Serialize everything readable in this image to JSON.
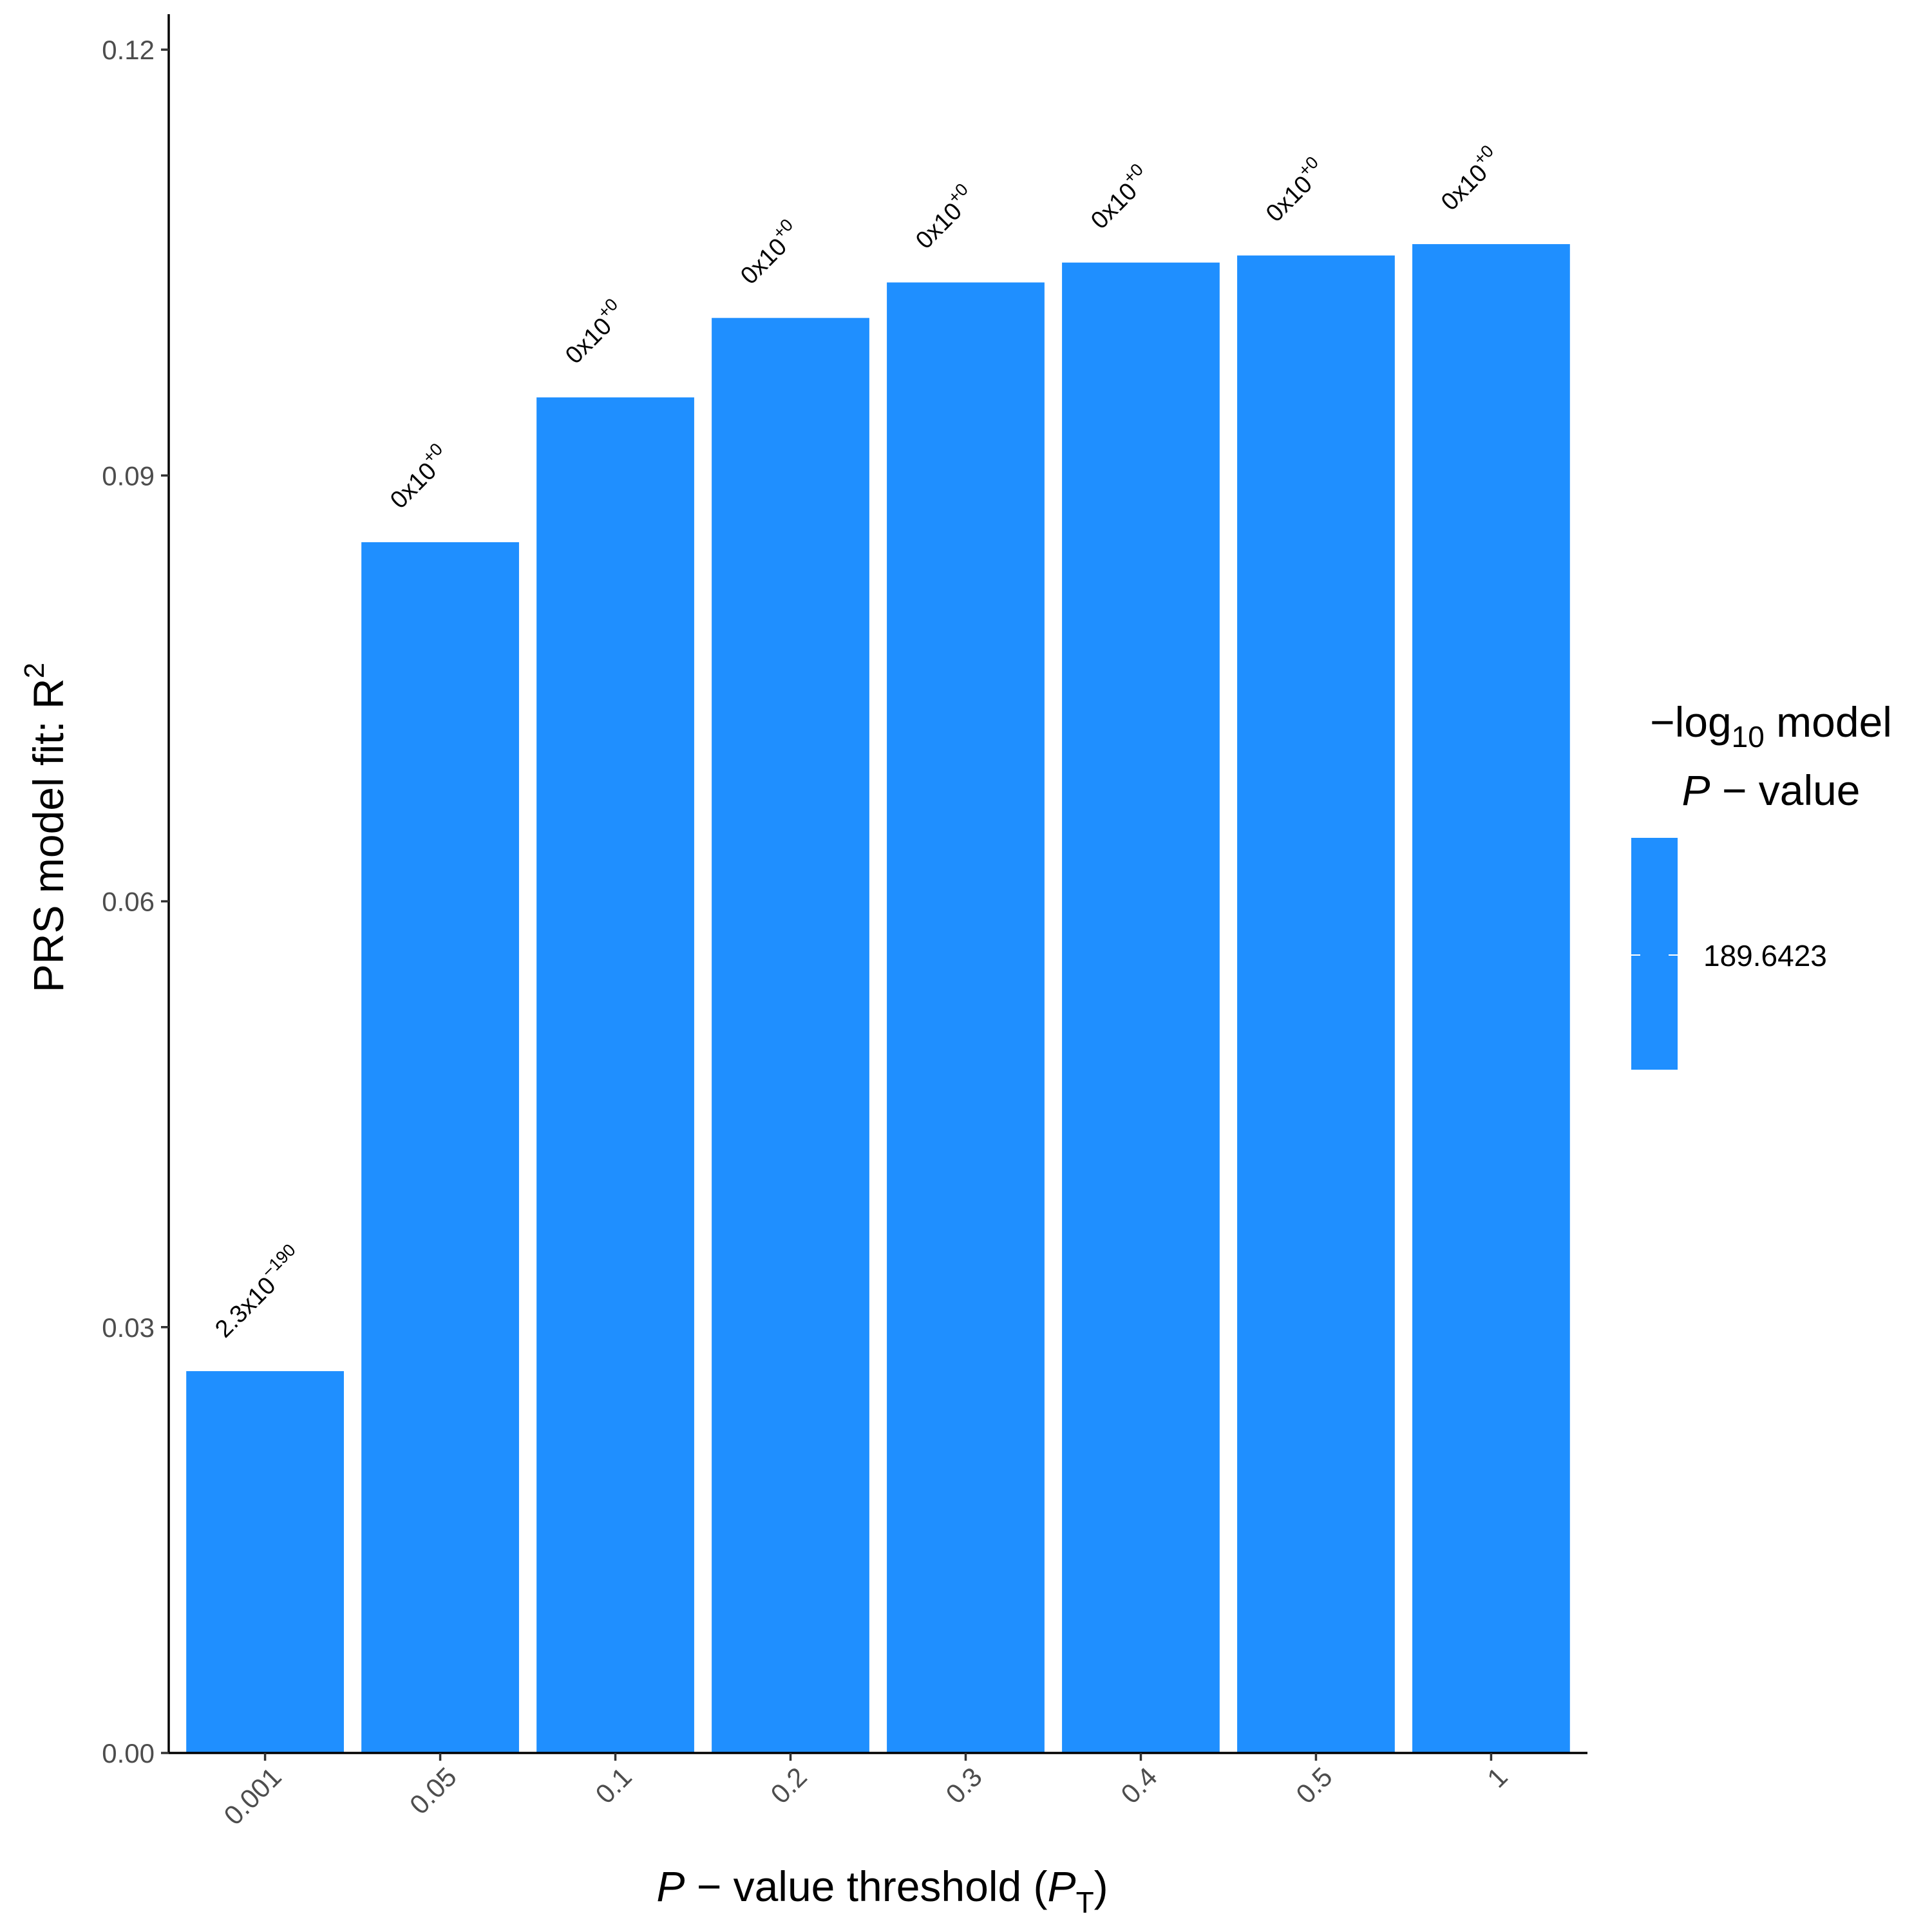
{
  "chart_data": {
    "type": "bar",
    "categories": [
      "0.001",
      "0.05",
      "0.1",
      "0.2",
      "0.3",
      "0.4",
      "0.5",
      "1"
    ],
    "values": [
      0.0269,
      0.0853,
      0.0955,
      0.1011,
      0.1036,
      0.105,
      0.1055,
      0.1063
    ],
    "data_labels": [
      {
        "base": "2.3x10",
        "exp": "−190"
      },
      {
        "base": "0x10",
        "exp": "+0"
      },
      {
        "base": "0x10",
        "exp": "+0"
      },
      {
        "base": "0x10",
        "exp": "+0"
      },
      {
        "base": "0x10",
        "exp": "+0"
      },
      {
        "base": "0x10",
        "exp": "+0"
      },
      {
        "base": "0x10",
        "exp": "+0"
      },
      {
        "base": "0x10",
        "exp": "+0"
      }
    ],
    "yticks": [
      0.0,
      0.03,
      0.06,
      0.09,
      0.12
    ],
    "ytick_labels": [
      "0.00",
      "0.03",
      "0.06",
      "0.09",
      "0.12"
    ],
    "ylim": [
      0,
      0.1225
    ],
    "xlabel": {
      "italic": "P",
      "text": " − value threshold (",
      "sub_base": "P",
      "sub": "T",
      "end": ")"
    },
    "ylabel": {
      "text": "PRS model fit:  R",
      "sup": "2"
    },
    "bar_color": "#1F8FFF",
    "legend": {
      "title_line1": {
        "text": "−log",
        "sub": "10",
        "end": " model"
      },
      "title_line2": {
        "italic": "P",
        "text": " − value"
      },
      "value_label": "189.6423",
      "placement": "right"
    },
    "grid": false
  }
}
